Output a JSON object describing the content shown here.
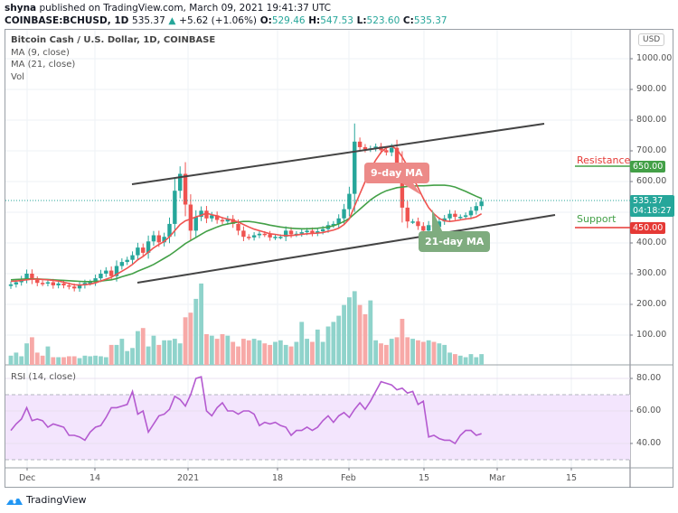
{
  "header": {
    "publisher": "shyna",
    "published_text": "published on TradingView.com, March 09, 2021 19:41:37 UTC",
    "symbol": "COINBASE:BCHUSD, 1D",
    "last": "535.37",
    "change_arrow": "▲",
    "change": "+5.62 (+1.06%)",
    "o_label": "O:",
    "o": "529.46",
    "h_label": "H:",
    "h": "547.53",
    "l_label": "L:",
    "l": "523.60",
    "c_label": "C:",
    "c": "535.37"
  },
  "legend": {
    "title": "Bitcoin Cash / U.S. Dollar, 1D, COINBASE",
    "ma9": "MA (9, close)",
    "ma21": "MA (21, close)",
    "vol": "Vol"
  },
  "currency_button": "USD",
  "rsi_label": "RSI (14, close)",
  "annotations": {
    "ma9_callout": "9-day MA",
    "ma21_callout": "21-day MA",
    "resistance_label": "Resistance",
    "support_label": "Support",
    "resistance_value": "650.00",
    "support_value": "450.00",
    "last_price_tag": "535.37",
    "countdown": "04:18:27"
  },
  "footer": {
    "brand": "TradingView"
  },
  "colors": {
    "up": "#26a69a",
    "down": "#ef5350",
    "vol_up": "#8fd3cb",
    "vol_down": "#f7a9a7",
    "ma9": "#ef5350",
    "ma21": "#43a047",
    "rsi_line": "#b45ad0",
    "rsi_band": "#f3e5fd",
    "resistance": "#43a047",
    "support": "#e53935",
    "channel": "#444444"
  },
  "chart_data": [
    {
      "type": "candlestick",
      "title": "Bitcoin Cash / U.S. Dollar, 1D, COINBASE",
      "y_axis_ticks": [
        "1000.00",
        "900.00",
        "800.00",
        "700.00",
        "600.00",
        "400.00",
        "300.00",
        "200.00",
        "100.00"
      ],
      "x_axis_ticks": [
        "Dec",
        "14",
        "2021",
        "18",
        "Feb",
        "15",
        "Mar",
        "15"
      ],
      "ylim": [
        0,
        1050
      ],
      "series": [
        {
          "name": "BCHUSD close (approx)",
          "values": [
            265,
            272,
            282,
            300,
            280,
            270,
            268,
            272,
            262,
            268,
            262,
            258,
            252,
            262,
            270,
            272,
            285,
            300,
            310,
            292,
            325,
            338,
            345,
            360,
            385,
            368,
            405,
            425,
            402,
            420,
            462,
            570,
            625,
            525,
            440,
            485,
            505,
            480,
            490,
            475,
            470,
            478,
            462,
            440,
            420,
            418,
            425,
            430,
            428,
            418,
            420,
            420,
            440,
            428,
            430,
            435,
            440,
            432,
            438,
            445,
            458,
            462,
            480,
            510,
            560,
            730,
            712,
            705,
            708,
            714,
            702,
            695,
            710,
            650,
            515,
            470,
            470,
            455,
            440,
            458,
            452,
            470,
            480,
            495,
            485,
            485,
            490,
            505,
            520,
            535
          ]
        },
        {
          "name": "MA (9, close)",
          "values": [
            275,
            276,
            278,
            280,
            282,
            282,
            281,
            280,
            278,
            276,
            272,
            268,
            264,
            263,
            264,
            266,
            270,
            276,
            282,
            288,
            298,
            308,
            318,
            330,
            345,
            356,
            370,
            384,
            395,
            405,
            420,
            440,
            460,
            472,
            478,
            485,
            490,
            497,
            492,
            488,
            482,
            478,
            474,
            468,
            460,
            452,
            445,
            440,
            435,
            430,
            428,
            425,
            424,
            424,
            426,
            428,
            430,
            431,
            432,
            434,
            438,
            442,
            448,
            460,
            478,
            520,
            560,
            600,
            640,
            670,
            695,
            710,
            715,
            705,
            680,
            650,
            615,
            580,
            545,
            515,
            495,
            480,
            472,
            470,
            472,
            475,
            478,
            480,
            485,
            495
          ]
        },
        {
          "name": "MA (21, close)",
          "values": [
            280,
            281,
            282,
            283,
            283,
            283,
            282,
            281,
            280,
            279,
            278,
            277,
            276,
            275,
            274,
            274,
            275,
            276,
            278,
            280,
            284,
            290,
            295,
            300,
            308,
            315,
            322,
            330,
            340,
            350,
            360,
            372,
            385,
            398,
            408,
            418,
            428,
            438,
            445,
            452,
            458,
            462,
            465,
            468,
            470,
            470,
            468,
            465,
            462,
            458,
            455,
            452,
            450,
            448,
            447,
            446,
            446,
            447,
            448,
            450,
            452,
            456,
            462,
            470,
            480,
            495,
            510,
            525,
            540,
            552,
            562,
            570,
            575,
            580,
            582,
            584,
            585,
            586,
            586,
            587,
            588,
            588,
            588,
            586,
            582,
            575,
            568,
            560,
            552,
            545
          ]
        },
        {
          "name": "Volume (approx)",
          "values": [
            30,
            40,
            28,
            70,
            90,
            40,
            30,
            60,
            25,
            25,
            25,
            28,
            28,
            22,
            30,
            28,
            30,
            28,
            25,
            65,
            65,
            85,
            45,
            55,
            110,
            120,
            60,
            95,
            65,
            80,
            80,
            85,
            70,
            155,
            170,
            215,
            265,
            100,
            95,
            85,
            100,
            95,
            75,
            60,
            85,
            80,
            85,
            80,
            70,
            65,
            75,
            80,
            65,
            60,
            75,
            140,
            85,
            75,
            115,
            75,
            125,
            140,
            160,
            195,
            220,
            240,
            195,
            165,
            210,
            80,
            70,
            65,
            85,
            90,
            150,
            90,
            85,
            80,
            75,
            80,
            75,
            70,
            65,
            40,
            35,
            30,
            25,
            35,
            25,
            35
          ]
        },
        {
          "name": "RSI (14, close)",
          "values": [
            48,
            52,
            55,
            62,
            54,
            55,
            54,
            50,
            52,
            51,
            50,
            45,
            45,
            44,
            42,
            47,
            50,
            51,
            56,
            62,
            62,
            63,
            64,
            72,
            58,
            60,
            47,
            52,
            57,
            58,
            61,
            69,
            67,
            63,
            70,
            80,
            81,
            60,
            57,
            62,
            65,
            60,
            60,
            58,
            60,
            60,
            58,
            51,
            53,
            52,
            53,
            51,
            50,
            45,
            48,
            48,
            50,
            48,
            50,
            54,
            57,
            53,
            57,
            59,
            56,
            61,
            65,
            61,
            66,
            72,
            78,
            77,
            76,
            73,
            74,
            71,
            72,
            64,
            66,
            44,
            45,
            43,
            42,
            42,
            40,
            45,
            48,
            48,
            45,
            46
          ]
        }
      ],
      "levels": {
        "resistance": 650,
        "support": 450,
        "last": 535.37
      },
      "rsi_ylim": [
        25,
        90
      ],
      "rsi_ticks": [
        "80.00",
        "60.00",
        "40.00"
      ],
      "rsi_bands": [
        70,
        30
      ]
    }
  ]
}
